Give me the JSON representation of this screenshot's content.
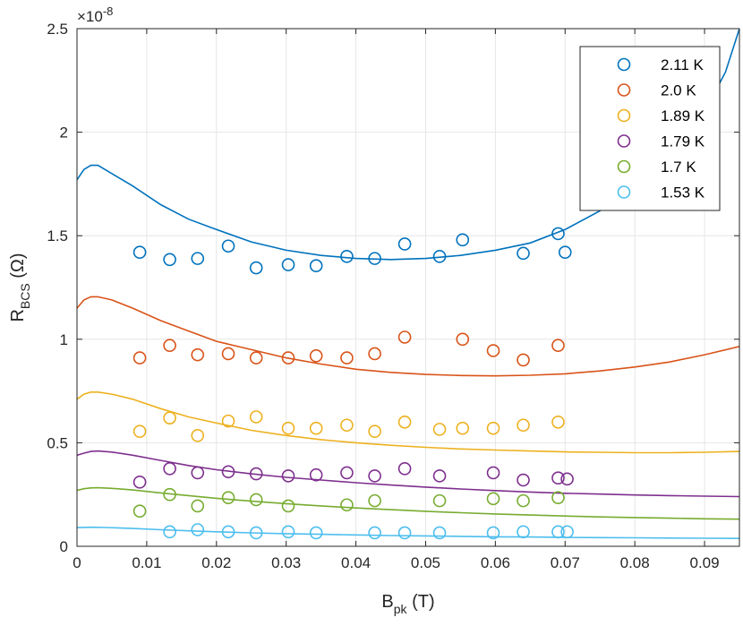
{
  "chart_data": {
    "type": "scatter",
    "xlabel": "B",
    "xlabel_sub": "pk",
    "xlabel_unit": " (T)",
    "ylabel": "R",
    "ylabel_sub": "BCS",
    "ylabel_unit": " (Ω)",
    "exponent_label": "×10",
    "exponent_power": "-8",
    "xlim": [
      0,
      0.095
    ],
    "ylim": [
      0,
      2.5
    ],
    "x_ticks": [
      0,
      0.01,
      0.02,
      0.03,
      0.04,
      0.05,
      0.06,
      0.07,
      0.08,
      0.09
    ],
    "x_tick_labels": [
      "0",
      "0.01",
      "0.02",
      "0.03",
      "0.04",
      "0.05",
      "0.06",
      "0.07",
      "0.08",
      "0.09"
    ],
    "y_ticks": [
      0,
      0.5,
      1,
      1.5,
      2,
      2.5
    ],
    "y_tick_labels": [
      "0",
      "0.5",
      "1",
      "1.5",
      "2",
      "2.5"
    ],
    "grid": true,
    "legend_position": "top-right",
    "series": [
      {
        "name": "2.11 K",
        "color": "#0072BD",
        "points": [
          [
            0.009,
            1.42
          ],
          [
            0.0133,
            1.385
          ],
          [
            0.0173,
            1.39
          ],
          [
            0.0217,
            1.45
          ],
          [
            0.0257,
            1.345
          ],
          [
            0.0303,
            1.36
          ],
          [
            0.0343,
            1.355
          ],
          [
            0.0387,
            1.4
          ],
          [
            0.0427,
            1.39
          ],
          [
            0.047,
            1.46
          ],
          [
            0.052,
            1.4
          ],
          [
            0.0553,
            1.48
          ],
          [
            0.064,
            1.415
          ],
          [
            0.069,
            1.51
          ],
          [
            0.07,
            1.42
          ]
        ],
        "fit": [
          [
            0,
            1.77
          ],
          [
            0.001,
            1.82
          ],
          [
            0.002,
            1.84
          ],
          [
            0.003,
            1.84
          ],
          [
            0.005,
            1.8
          ],
          [
            0.008,
            1.74
          ],
          [
            0.012,
            1.65
          ],
          [
            0.016,
            1.58
          ],
          [
            0.02,
            1.53
          ],
          [
            0.025,
            1.47
          ],
          [
            0.03,
            1.43
          ],
          [
            0.035,
            1.405
          ],
          [
            0.04,
            1.39
          ],
          [
            0.045,
            1.385
          ],
          [
            0.05,
            1.39
          ],
          [
            0.055,
            1.405
          ],
          [
            0.06,
            1.43
          ],
          [
            0.065,
            1.465
          ],
          [
            0.07,
            1.53
          ],
          [
            0.075,
            1.62
          ],
          [
            0.08,
            1.74
          ],
          [
            0.085,
            1.9
          ],
          [
            0.09,
            2.1
          ],
          [
            0.093,
            2.29
          ],
          [
            0.095,
            2.5
          ]
        ]
      },
      {
        "name": "2.0 K",
        "color": "#D95319",
        "points": [
          [
            0.009,
            0.91
          ],
          [
            0.0133,
            0.97
          ],
          [
            0.0173,
            0.925
          ],
          [
            0.0217,
            0.93
          ],
          [
            0.0257,
            0.91
          ],
          [
            0.0303,
            0.91
          ],
          [
            0.0343,
            0.92
          ],
          [
            0.0387,
            0.91
          ],
          [
            0.0427,
            0.93
          ],
          [
            0.047,
            1.01
          ],
          [
            0.0553,
            1.0
          ],
          [
            0.0597,
            0.945
          ],
          [
            0.064,
            0.9
          ],
          [
            0.069,
            0.97
          ]
        ],
        "fit": [
          [
            0,
            1.15
          ],
          [
            0.001,
            1.19
          ],
          [
            0.002,
            1.205
          ],
          [
            0.003,
            1.205
          ],
          [
            0.005,
            1.19
          ],
          [
            0.008,
            1.15
          ],
          [
            0.012,
            1.09
          ],
          [
            0.016,
            1.04
          ],
          [
            0.02,
            0.99
          ],
          [
            0.025,
            0.95
          ],
          [
            0.03,
            0.91
          ],
          [
            0.035,
            0.88
          ],
          [
            0.04,
            0.855
          ],
          [
            0.045,
            0.84
          ],
          [
            0.05,
            0.83
          ],
          [
            0.055,
            0.825
          ],
          [
            0.06,
            0.823
          ],
          [
            0.065,
            0.826
          ],
          [
            0.07,
            0.833
          ],
          [
            0.075,
            0.847
          ],
          [
            0.08,
            0.866
          ],
          [
            0.085,
            0.89
          ],
          [
            0.09,
            0.925
          ],
          [
            0.095,
            0.965
          ]
        ]
      },
      {
        "name": "1.89 K",
        "color": "#EDB120",
        "points": [
          [
            0.009,
            0.555
          ],
          [
            0.0133,
            0.62
          ],
          [
            0.0173,
            0.535
          ],
          [
            0.0217,
            0.605
          ],
          [
            0.0257,
            0.625
          ],
          [
            0.0303,
            0.57
          ],
          [
            0.0343,
            0.57
          ],
          [
            0.0387,
            0.585
          ],
          [
            0.0427,
            0.555
          ],
          [
            0.047,
            0.6
          ],
          [
            0.052,
            0.565
          ],
          [
            0.0553,
            0.57
          ],
          [
            0.0597,
            0.57
          ],
          [
            0.064,
            0.585
          ],
          [
            0.069,
            0.6
          ]
        ],
        "fit": [
          [
            0,
            0.71
          ],
          [
            0.001,
            0.735
          ],
          [
            0.002,
            0.745
          ],
          [
            0.003,
            0.745
          ],
          [
            0.005,
            0.735
          ],
          [
            0.008,
            0.71
          ],
          [
            0.012,
            0.665
          ],
          [
            0.016,
            0.625
          ],
          [
            0.02,
            0.595
          ],
          [
            0.025,
            0.56
          ],
          [
            0.03,
            0.535
          ],
          [
            0.035,
            0.515
          ],
          [
            0.04,
            0.5
          ],
          [
            0.045,
            0.488
          ],
          [
            0.05,
            0.478
          ],
          [
            0.055,
            0.47
          ],
          [
            0.06,
            0.465
          ],
          [
            0.065,
            0.46
          ],
          [
            0.07,
            0.456
          ],
          [
            0.075,
            0.454
          ],
          [
            0.08,
            0.452
          ],
          [
            0.085,
            0.452
          ],
          [
            0.09,
            0.454
          ],
          [
            0.095,
            0.458
          ]
        ]
      },
      {
        "name": "1.79 K",
        "color": "#7E2F8E",
        "points": [
          [
            0.009,
            0.31
          ],
          [
            0.0133,
            0.375
          ],
          [
            0.0173,
            0.355
          ],
          [
            0.0217,
            0.36
          ],
          [
            0.0257,
            0.35
          ],
          [
            0.0303,
            0.34
          ],
          [
            0.0343,
            0.345
          ],
          [
            0.0387,
            0.355
          ],
          [
            0.0427,
            0.34
          ],
          [
            0.047,
            0.375
          ],
          [
            0.052,
            0.34
          ],
          [
            0.0597,
            0.355
          ],
          [
            0.064,
            0.32
          ],
          [
            0.069,
            0.33
          ],
          [
            0.0703,
            0.325
          ]
        ],
        "fit": [
          [
            0,
            0.44
          ],
          [
            0.001,
            0.45
          ],
          [
            0.002,
            0.458
          ],
          [
            0.003,
            0.46
          ],
          [
            0.005,
            0.455
          ],
          [
            0.008,
            0.44
          ],
          [
            0.012,
            0.415
          ],
          [
            0.016,
            0.39
          ],
          [
            0.02,
            0.37
          ],
          [
            0.025,
            0.35
          ],
          [
            0.03,
            0.333
          ],
          [
            0.035,
            0.32
          ],
          [
            0.04,
            0.307
          ],
          [
            0.045,
            0.296
          ],
          [
            0.05,
            0.286
          ],
          [
            0.055,
            0.277
          ],
          [
            0.06,
            0.269
          ],
          [
            0.065,
            0.262
          ],
          [
            0.07,
            0.256
          ],
          [
            0.075,
            0.252
          ],
          [
            0.08,
            0.248
          ],
          [
            0.085,
            0.245
          ],
          [
            0.09,
            0.242
          ],
          [
            0.095,
            0.24
          ]
        ]
      },
      {
        "name": "1.7 K",
        "color": "#77AC30",
        "points": [
          [
            0.009,
            0.17
          ],
          [
            0.0133,
            0.25
          ],
          [
            0.0173,
            0.195
          ],
          [
            0.0217,
            0.235
          ],
          [
            0.0257,
            0.225
          ],
          [
            0.0303,
            0.195
          ],
          [
            0.0387,
            0.2
          ],
          [
            0.0427,
            0.22
          ],
          [
            0.052,
            0.22
          ],
          [
            0.0597,
            0.23
          ],
          [
            0.064,
            0.22
          ],
          [
            0.069,
            0.235
          ]
        ],
        "fit": [
          [
            0,
            0.27
          ],
          [
            0.001,
            0.278
          ],
          [
            0.002,
            0.282
          ],
          [
            0.003,
            0.283
          ],
          [
            0.005,
            0.28
          ],
          [
            0.008,
            0.272
          ],
          [
            0.012,
            0.258
          ],
          [
            0.016,
            0.245
          ],
          [
            0.02,
            0.232
          ],
          [
            0.025,
            0.218
          ],
          [
            0.03,
            0.206
          ],
          [
            0.035,
            0.195
          ],
          [
            0.04,
            0.185
          ],
          [
            0.045,
            0.177
          ],
          [
            0.05,
            0.169
          ],
          [
            0.055,
            0.162
          ],
          [
            0.06,
            0.156
          ],
          [
            0.065,
            0.151
          ],
          [
            0.07,
            0.146
          ],
          [
            0.075,
            0.142
          ],
          [
            0.08,
            0.139
          ],
          [
            0.085,
            0.136
          ],
          [
            0.09,
            0.133
          ],
          [
            0.095,
            0.131
          ]
        ]
      },
      {
        "name": "1.53 K",
        "color": "#4DBEEE",
        "points": [
          [
            0.0133,
            0.07
          ],
          [
            0.0173,
            0.08
          ],
          [
            0.0217,
            0.07
          ],
          [
            0.0257,
            0.065
          ],
          [
            0.0303,
            0.07
          ],
          [
            0.0343,
            0.065
          ],
          [
            0.0427,
            0.065
          ],
          [
            0.047,
            0.065
          ],
          [
            0.052,
            0.065
          ],
          [
            0.0597,
            0.065
          ],
          [
            0.064,
            0.07
          ],
          [
            0.069,
            0.07
          ],
          [
            0.0703,
            0.07
          ]
        ],
        "fit": [
          [
            0,
            0.09
          ],
          [
            0.002,
            0.092
          ],
          [
            0.004,
            0.091
          ],
          [
            0.008,
            0.086
          ],
          [
            0.012,
            0.08
          ],
          [
            0.016,
            0.075
          ],
          [
            0.02,
            0.07
          ],
          [
            0.025,
            0.065
          ],
          [
            0.03,
            0.061
          ],
          [
            0.035,
            0.058
          ],
          [
            0.04,
            0.055
          ],
          [
            0.045,
            0.052
          ],
          [
            0.05,
            0.05
          ],
          [
            0.055,
            0.048
          ],
          [
            0.06,
            0.046
          ],
          [
            0.065,
            0.045
          ],
          [
            0.07,
            0.043
          ],
          [
            0.075,
            0.042
          ],
          [
            0.08,
            0.041
          ],
          [
            0.085,
            0.04
          ],
          [
            0.09,
            0.039
          ],
          [
            0.095,
            0.038
          ]
        ]
      }
    ]
  }
}
